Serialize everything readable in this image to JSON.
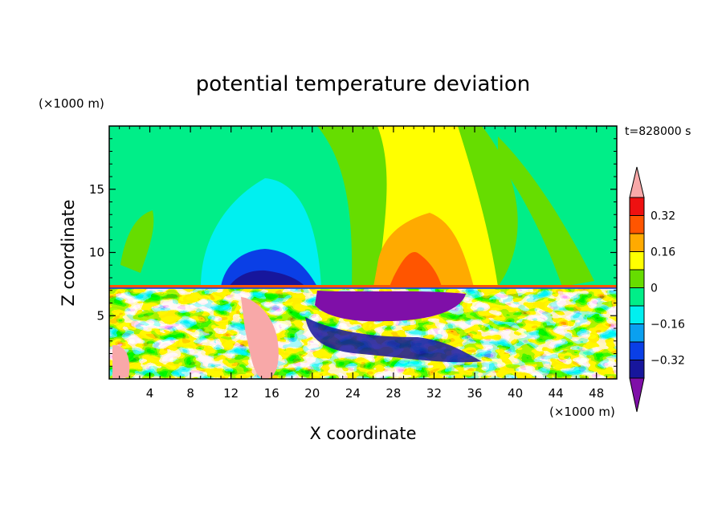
{
  "chart_data": {
    "type": "heatmap",
    "title": "potential temperature deviation",
    "xlabel": "X coordinate",
    "ylabel": "Z coordinate",
    "x_unit": "(×1000 m)",
    "y_unit": "(×1000 m)",
    "time_label": "t=828000 s",
    "xlim": [
      0,
      50
    ],
    "ylim": [
      0,
      20
    ],
    "x_ticks": [
      4,
      8,
      12,
      16,
      20,
      24,
      28,
      32,
      36,
      40,
      44,
      48
    ],
    "y_ticks": [
      5,
      10,
      15
    ],
    "colorbar": {
      "levels": [
        -0.4,
        -0.32,
        -0.24,
        -0.16,
        -0.08,
        0,
        0.08,
        0.16,
        0.24,
        0.32,
        0.4
      ],
      "labeled_levels": [
        0.32,
        0.16,
        0,
        -0.16,
        -0.32
      ],
      "colors_low_to_high": [
        "#7f0fa8",
        "#17169c",
        "#0a3fe6",
        "#0aa0f0",
        "#00f0f0",
        "#00ee88",
        "#66dd00",
        "#ffff00",
        "#ffaa00",
        "#ff5500",
        "#ee1111",
        "#f8a8a8"
      ]
    },
    "upper_layer_bands": [
      {
        "x": [
          0,
          10
        ],
        "value": "0 to 0.08"
      },
      {
        "x": [
          10,
          19
        ],
        "value": "-0.16 to -0.08"
      },
      {
        "x": [
          19,
          27
        ],
        "value": "0.08 to 0.16"
      },
      {
        "x": [
          27,
          35
        ],
        "value": "0.16 to 0.24"
      },
      {
        "x": [
          35,
          50
        ],
        "value": "0.08 to 0.16"
      }
    ],
    "interface_height": 7.2
  }
}
